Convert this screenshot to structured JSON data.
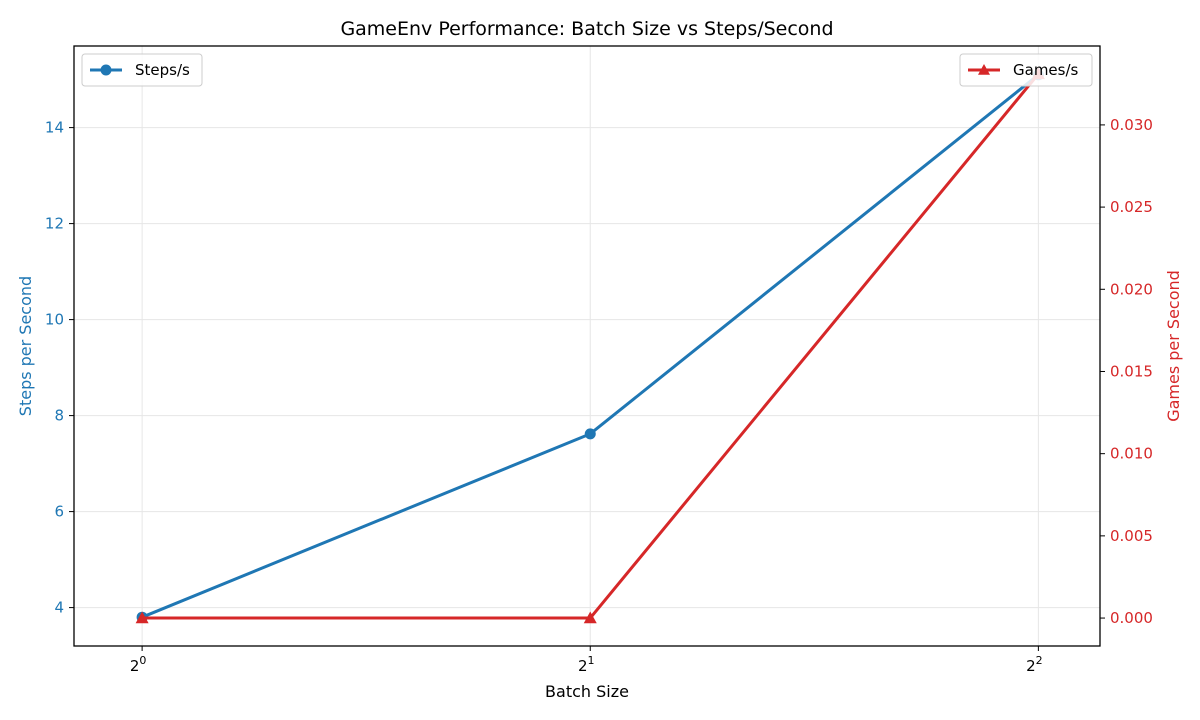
{
  "chart_data": {
    "type": "line",
    "title": "GameEnv Performance: Batch Size vs Steps/Second",
    "xlabel": "Batch Size",
    "ylabel_left": "Steps per Second",
    "ylabel_right": "Games per Second",
    "x_scale": "log2",
    "x": [
      1,
      2,
      4
    ],
    "x_tick_base": "2",
    "x_tick_exponents": [
      "0",
      "1",
      "2"
    ],
    "xlim": [
      0.9,
      4.4
    ],
    "ylim_left": [
      3.2,
      15.7
    ],
    "ylim_right": [
      -0.0017,
      0.0348
    ],
    "yticks_left": [
      "4",
      "6",
      "8",
      "10",
      "12",
      "14"
    ],
    "yticks_right": [
      "0.000",
      "0.005",
      "0.010",
      "0.015",
      "0.020",
      "0.025",
      "0.030"
    ],
    "grid": true,
    "series": [
      {
        "name": "Steps/s",
        "axis": "left",
        "values": [
          3.8,
          7.62,
          15.1
        ],
        "color": "#1f77b4",
        "marker": "circle",
        "legend": "top-left"
      },
      {
        "name": "Games/s",
        "axis": "right",
        "values": [
          0.0,
          0.0,
          0.0331
        ],
        "color": "#d62728",
        "marker": "triangle",
        "legend": "top-right"
      }
    ],
    "colors": {
      "left_axis": "#1f77b4",
      "right_axis": "#d62728",
      "grid": "#e6e6e6"
    }
  }
}
